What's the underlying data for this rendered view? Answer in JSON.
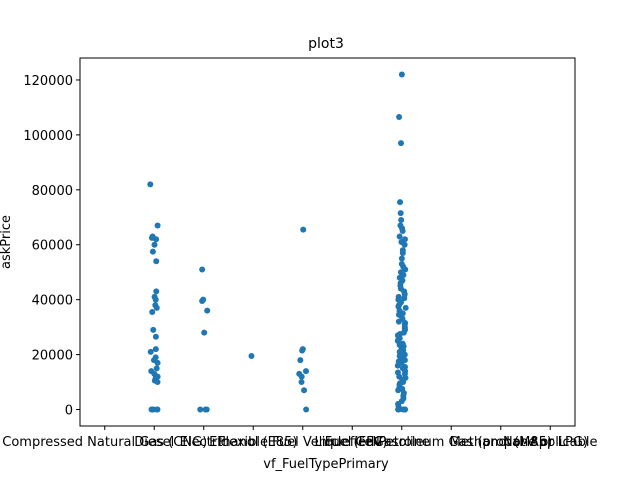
{
  "chart_data": {
    "type": "strip",
    "title": "plot3",
    "x_label": "vf_FuelTypePrimary",
    "y_label": "askPrice",
    "color": "#1f77b4",
    "categories": [
      "Compressed Natural Gas (CNG)",
      "Diesel",
      "Electric",
      "Ethanol (E85)",
      "Flexible Fuel Vehicle (FFV)",
      "Fuel Cell",
      "Gasoline",
      "Liquefied Petroleum Gas (propane or LPG)",
      "Methanol (M85)",
      "Not Applicable"
    ],
    "values": [
      [],
      [
        82000,
        67000,
        63000,
        62500,
        62000,
        60000,
        57500,
        54000,
        43000,
        41000,
        40000,
        38000,
        37000,
        35500,
        29000,
        26500,
        22000,
        21000,
        19000,
        18000,
        17000,
        15000,
        14000,
        13000,
        12000,
        11500,
        11000,
        10500,
        10000,
        0,
        0,
        0,
        0,
        0,
        0
      ],
      [
        51000,
        40000,
        39500,
        36000,
        28000,
        0,
        0,
        0
      ],
      [
        19500
      ],
      [
        65500,
        22000,
        21500,
        18000,
        14000,
        13000,
        12000,
        10000,
        7000,
        0
      ],
      [],
      [
        122000,
        106500,
        97000,
        75500,
        71500,
        69000,
        67000,
        66000,
        65000,
        63000,
        62000,
        61000,
        60000,
        58000,
        57000,
        55000,
        53000,
        52000,
        51000,
        50000,
        49000,
        48000,
        47000,
        46000,
        45000,
        44000,
        43000,
        42000,
        41000,
        40500,
        40000,
        39000,
        38000,
        37500,
        37000,
        36000,
        35000,
        34500,
        34000,
        33000,
        32000,
        31500,
        31000,
        30000,
        29500,
        29000,
        28000,
        27500,
        27000,
        26000,
        25500,
        25000,
        24000,
        23500,
        23000,
        22000,
        21500,
        21000,
        20000,
        19500,
        19000,
        18000,
        17500,
        17000,
        16000,
        15500,
        15000,
        14000,
        13500,
        13000,
        12000,
        11500,
        11000,
        10000,
        9500,
        9000,
        8000,
        7500,
        7000,
        6000,
        5000,
        4000,
        3000,
        2000,
        1000,
        0,
        0,
        0,
        0,
        0
      ],
      [],
      [],
      []
    ],
    "ylim": [
      -6000,
      128000
    ],
    "yticks": [
      0,
      20000,
      40000,
      60000,
      80000,
      100000,
      120000
    ]
  }
}
